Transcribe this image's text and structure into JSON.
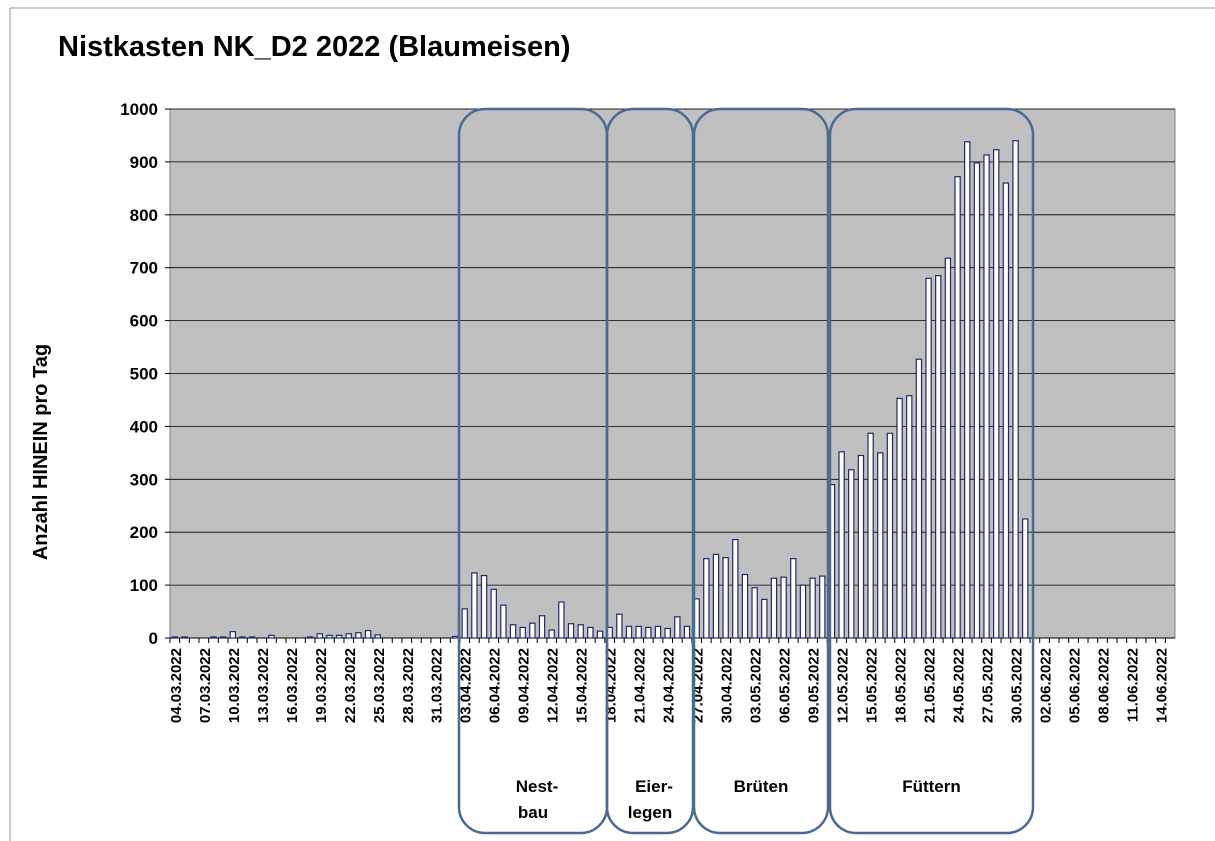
{
  "chart_data": {
    "type": "bar",
    "title": "Nistkasten  NK_D2 2022 (Blaumeisen)",
    "y_label": "Anzahl HINEIN pro Tag",
    "categories": [
      "04.03.2022",
      null,
      null,
      "07.03.2022",
      null,
      null,
      "10.03.2022",
      null,
      null,
      "13.03.2022",
      null,
      null,
      "16.03.2022",
      null,
      null,
      "19.03.2022",
      null,
      null,
      "22.03.2022",
      null,
      null,
      "25.03.2022",
      null,
      null,
      "28.03.2022",
      null,
      null,
      "31.03.2022",
      null,
      null,
      "03.04.2022",
      null,
      null,
      "06.04.2022",
      null,
      null,
      "09.04.2022",
      null,
      null,
      "12.04.2022",
      null,
      null,
      "15.04.2022",
      null,
      null,
      "18.04.2022",
      null,
      null,
      "21.04.2022",
      null,
      null,
      "24.04.2022",
      null,
      null,
      "27.04.2022",
      null,
      null,
      "30.04.2022",
      null,
      null,
      "03.05.2022",
      null,
      null,
      "06.05.2022",
      null,
      null,
      "09.05.2022",
      null,
      null,
      "12.05.2022",
      null,
      null,
      "15.05.2022",
      null,
      null,
      "18.05.2022",
      null,
      null,
      "21.05.2022",
      null,
      null,
      "24.05.2022",
      null,
      null,
      "27.05.2022",
      null,
      null,
      "30.05.2022",
      null,
      null,
      "02.06.2022",
      null,
      null,
      "05.06.2022",
      null,
      null,
      "08.06.2022",
      null,
      null,
      "11.06.2022",
      null,
      null,
      "14.06.2022",
      null
    ],
    "values": [
      2,
      2,
      0,
      0,
      2,
      2,
      12,
      2,
      2,
      0,
      5,
      0,
      0,
      0,
      2,
      8,
      5,
      5,
      8,
      10,
      14,
      6,
      0,
      0,
      0,
      0,
      0,
      0,
      0,
      3,
      55,
      123,
      118,
      92,
      62,
      25,
      20,
      28,
      42,
      15,
      68,
      27,
      25,
      20,
      13,
      20,
      45,
      22,
      22,
      20,
      22,
      18,
      40,
      22,
      74,
      150,
      158,
      152,
      186,
      120,
      95,
      73,
      113,
      115,
      150,
      100,
      113,
      117,
      290,
      352,
      318,
      345,
      387,
      350,
      387,
      453,
      458,
      527,
      680,
      685,
      718,
      872,
      938,
      898,
      913,
      923,
      860,
      940,
      225,
      0,
      0,
      0,
      0,
      0,
      0,
      0,
      0,
      0,
      0,
      0,
      0,
      0,
      0,
      0
    ],
    "color": "#ffffff",
    "edge_color": "#1f2a6b",
    "ylim": [
      0,
      1000
    ],
    "yticks": [
      0,
      100,
      200,
      300,
      400,
      500,
      600,
      700,
      800,
      900,
      1000
    ],
    "grid": true,
    "annotations": [
      {
        "lines": [
          "Nest-",
          "bau"
        ]
      },
      {
        "lines": [
          "Eier-",
          "legen"
        ]
      },
      {
        "lines": [
          "Brüten"
        ]
      },
      {
        "lines": [
          "Füttern"
        ]
      }
    ]
  }
}
